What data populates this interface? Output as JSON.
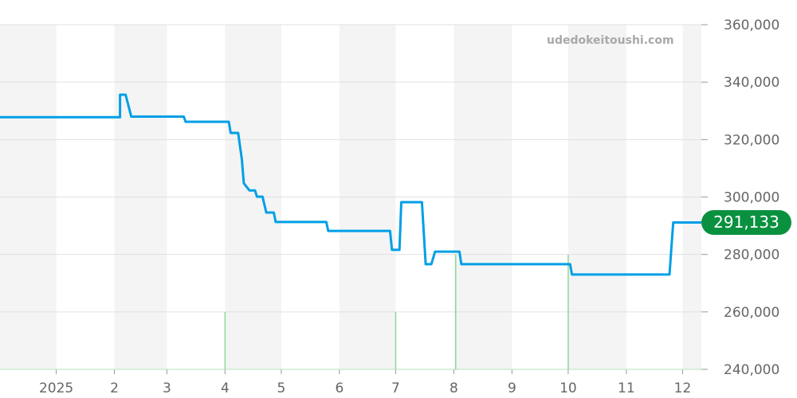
{
  "watermark": "udedokeitoushi.com",
  "chart_data": {
    "type": "line",
    "title": "",
    "xlabel": "",
    "ylabel": "",
    "x_range": [
      "2024-12-02",
      "2025-12-11"
    ],
    "ylim": [
      240000,
      360000
    ],
    "y_ticks": [
      240000,
      260000,
      280000,
      300000,
      320000,
      340000,
      360000
    ],
    "y_tick_labels": [
      "240,000",
      "260,000",
      "280,000",
      "300,000",
      "320,000",
      "340,000",
      "360,000"
    ],
    "x_ticks": [
      "2025-01-01",
      "2025-02-01",
      "2025-03-01",
      "2025-04-01",
      "2025-05-01",
      "2025-06-01",
      "2025-07-01",
      "2025-08-01",
      "2025-09-01",
      "2025-10-01",
      "2025-11-01",
      "2025-12-01"
    ],
    "x_tick_labels": [
      "2025",
      "2",
      "3",
      "4",
      "5",
      "6",
      "7",
      "8",
      "9",
      "10",
      "11",
      "12"
    ],
    "grid": true,
    "alternating_month_shading": true,
    "line_color": "#009fe6",
    "series": [
      {
        "points": [
          [
            "2024-12-02",
            327800
          ],
          [
            "2025-02-04",
            327800
          ],
          [
            "2025-02-04",
            335600
          ],
          [
            "2025-02-07",
            335600
          ],
          [
            "2025-02-10",
            328000
          ],
          [
            "2025-03-10",
            328000
          ],
          [
            "2025-03-11",
            326200
          ],
          [
            "2025-04-03",
            326200
          ],
          [
            "2025-04-04",
            322300
          ],
          [
            "2025-04-08",
            322300
          ],
          [
            "2025-04-10",
            313000
          ],
          [
            "2025-04-11",
            304800
          ],
          [
            "2025-04-14",
            302300
          ],
          [
            "2025-04-17",
            302300
          ],
          [
            "2025-04-18",
            300100
          ],
          [
            "2025-04-21",
            300100
          ],
          [
            "2025-04-23",
            294600
          ],
          [
            "2025-04-27",
            294600
          ],
          [
            "2025-04-28",
            291300
          ],
          [
            "2025-05-25",
            291300
          ],
          [
            "2025-05-26",
            288200
          ],
          [
            "2025-06-28",
            288200
          ],
          [
            "2025-06-29",
            281600
          ],
          [
            "2025-07-03",
            281600
          ],
          [
            "2025-07-04",
            298200
          ],
          [
            "2025-07-15",
            298200
          ],
          [
            "2025-07-17",
            276600
          ],
          [
            "2025-07-20",
            276600
          ],
          [
            "2025-07-22",
            281000
          ],
          [
            "2025-08-04",
            281000
          ],
          [
            "2025-08-05",
            276600
          ],
          [
            "2025-10-02",
            276600
          ],
          [
            "2025-10-03",
            273000
          ],
          [
            "2025-11-24",
            273000
          ],
          [
            "2025-11-26",
            291133
          ],
          [
            "2025-12-11",
            291133
          ]
        ]
      }
    ],
    "volume_color": "#8fd89a",
    "volume_markers": [
      {
        "date": "2025-04-01",
        "level": 1
      },
      {
        "date": "2025-07-01",
        "level": 1
      },
      {
        "date": "2025-08-02",
        "level": 2
      },
      {
        "date": "2025-10-01",
        "level": 2
      }
    ],
    "last_value": 291133,
    "last_value_label": "291,133",
    "last_value_color": "#0a9140"
  }
}
